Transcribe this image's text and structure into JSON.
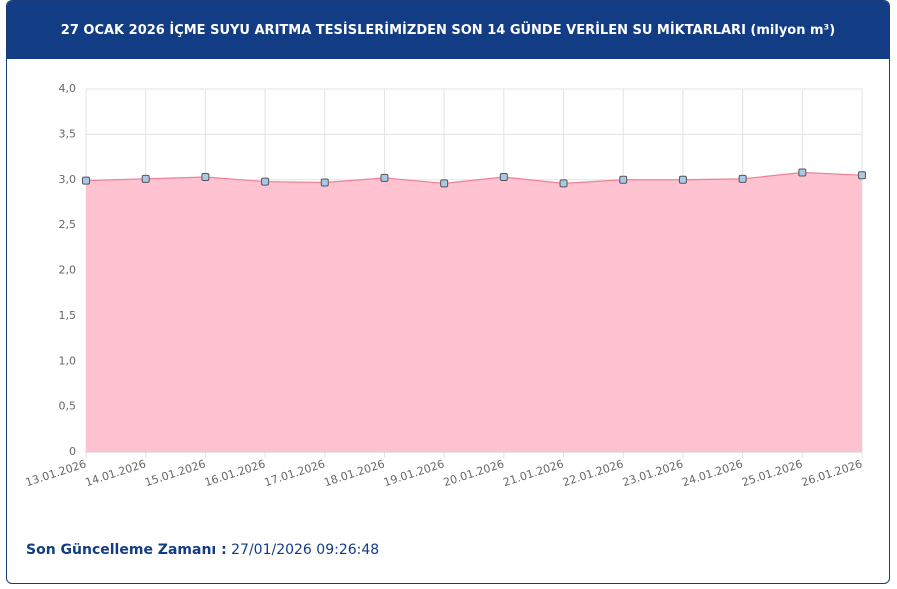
{
  "chart_data": {
    "type": "area",
    "title": "27 OCAK 2026 İÇME SUYU ARITMA TESİSLERİMİZDEN SON 14 GÜNDE VERİLEN SU MİKTARLARI (milyon m³)",
    "categories": [
      "13.01.2026",
      "14.01.2026",
      "15.01.2026",
      "16.01.2026",
      "17.01.2026",
      "18.01.2026",
      "19.01.2026",
      "20.01.2026",
      "21.01.2026",
      "22.01.2026",
      "23.01.2026",
      "24.01.2026",
      "25.01.2026",
      "26.01.2026"
    ],
    "series": [
      {
        "color": "#f08098",
        "values": [
          2.99,
          3.01,
          3.03,
          2.98,
          2.97,
          3.02,
          2.96,
          3.03,
          2.96,
          3.0,
          3.0,
          3.01,
          3.08,
          3.05
        ]
      }
    ],
    "fill": "#ffc2d1",
    "marker_fill": "#a9c8e8",
    "marker_stroke": "#555555",
    "ylim": [
      0,
      4
    ],
    "yticks": [
      0,
      {
        "value": 0.5,
        "label": "0,5"
      },
      {
        "value": 1,
        "label": "1,0"
      },
      {
        "value": 1.5,
        "label": "1,5"
      },
      {
        "value": 2,
        "label": "2,0"
      },
      {
        "value": 2.5,
        "label": "2,5"
      },
      {
        "value": 3,
        "label": "3,0"
      },
      {
        "value": 3.5,
        "label": "3,5"
      },
      {
        "value": 4,
        "label": "4,0"
      }
    ],
    "grid": true
  },
  "footer": {
    "label": "Son Güncelleme Zamanı :",
    "value": "27/01/2026 09:26:48"
  }
}
